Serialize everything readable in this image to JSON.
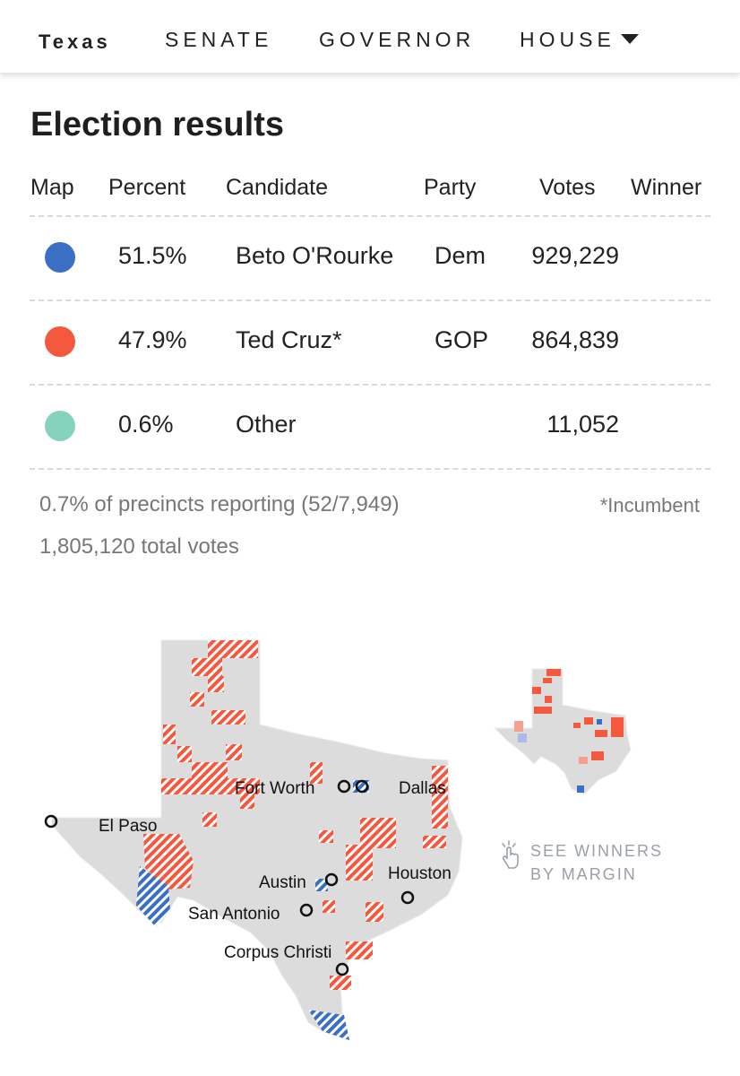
{
  "nav": {
    "state": "Texas",
    "items": [
      "SENATE",
      "GOVERNOR",
      "HOUSE"
    ]
  },
  "title": "Election results",
  "table": {
    "headers": [
      "Map",
      "Percent",
      "Candidate",
      "Party",
      "Votes",
      "Winner"
    ],
    "rows": [
      {
        "color": "#3a6fc4",
        "percent": "51.5%",
        "candidate": "Beto O'Rourke",
        "party": "Dem",
        "votes": "929,229",
        "winner": ""
      },
      {
        "color": "#f4583f",
        "percent": "47.9%",
        "candidate": "Ted Cruz*",
        "party": "GOP",
        "votes": "864,839",
        "winner": ""
      },
      {
        "color": "#86d3bd",
        "percent": "0.6%",
        "candidate": "Other",
        "party": "",
        "votes": "11,052",
        "winner": ""
      }
    ]
  },
  "footer": {
    "precincts": "0.7% of precincts reporting (52/7,949)",
    "incumbent": "*Incumbent",
    "total_votes": "1,805,120 total votes"
  },
  "map": {
    "cities": [
      "Fort Worth",
      "Dallas",
      "El Paso",
      "Austin",
      "Houston",
      "San Antonio",
      "Corpus Christi"
    ],
    "see_winners": [
      "SEE WINNERS",
      "BY MARGIN"
    ],
    "colors": {
      "dem": "#3a6fc4",
      "gop": "#f4583f",
      "base": "#dcdcdc"
    }
  }
}
